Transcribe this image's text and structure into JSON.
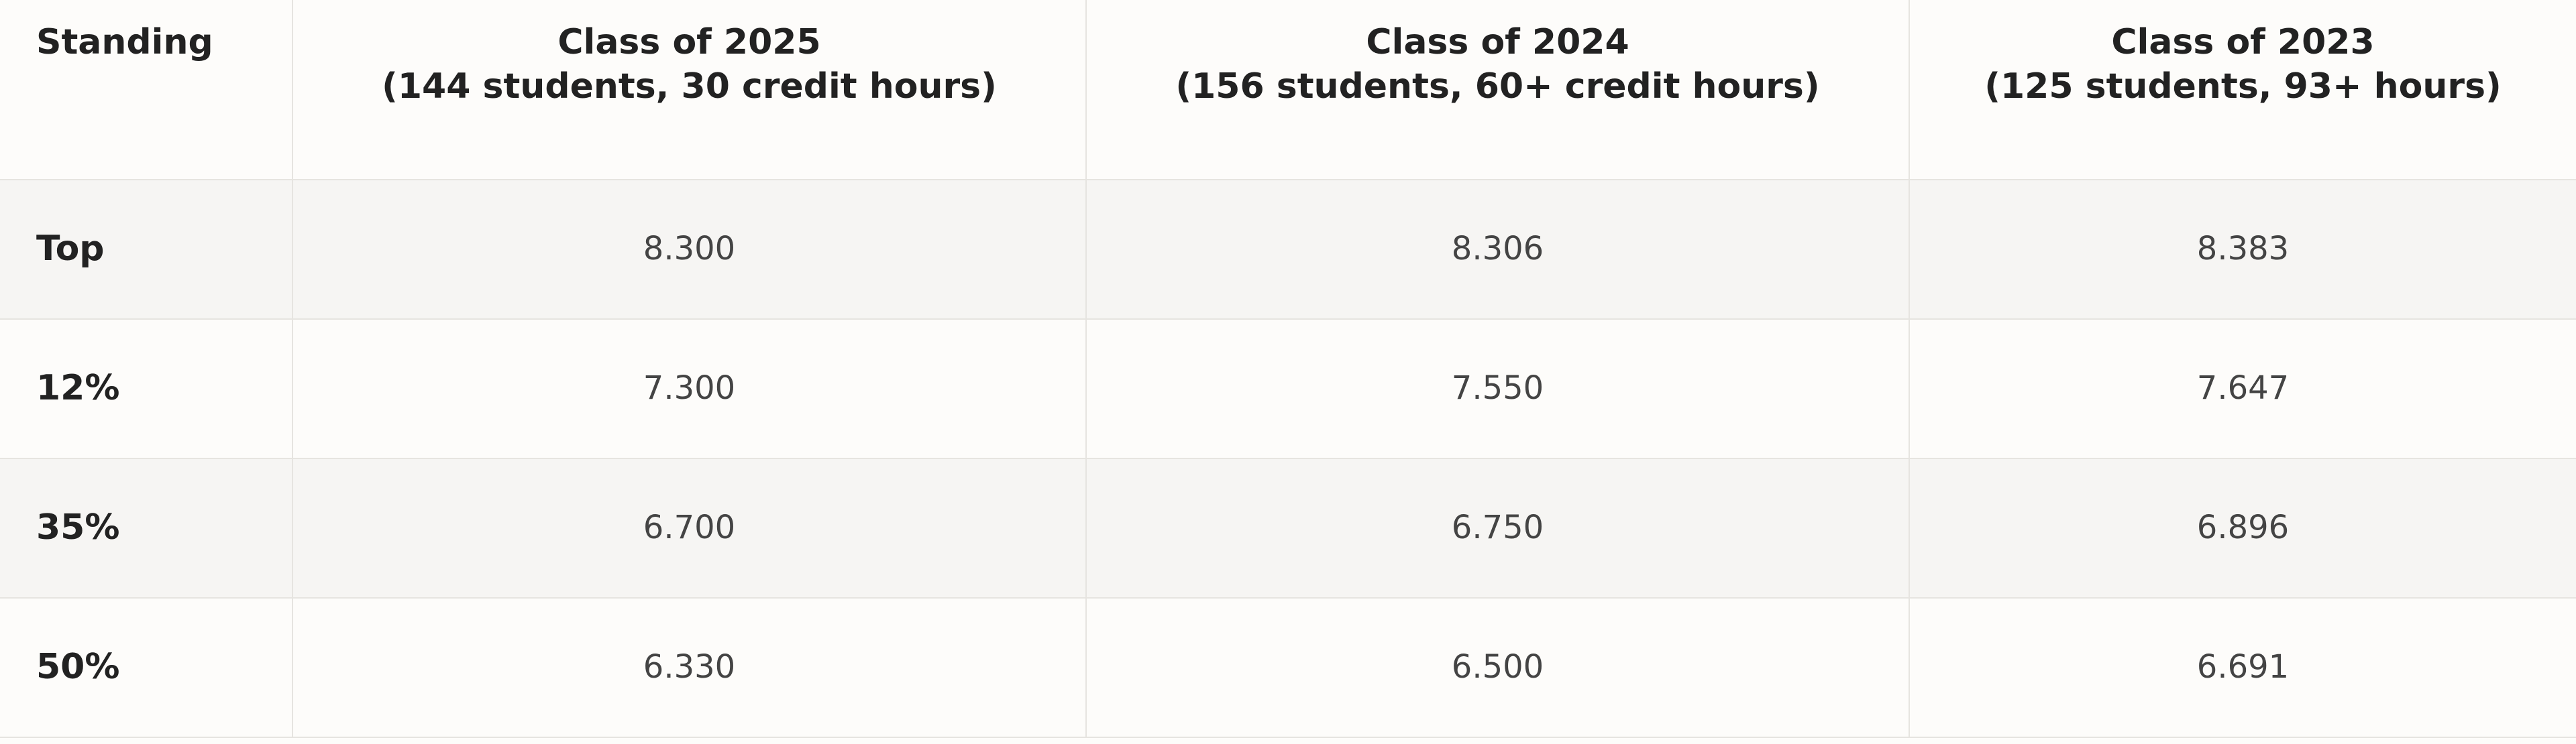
{
  "table": {
    "corner": "Standing",
    "columns": [
      {
        "title": "Class of 2025",
        "subtitle": "(144 students, 30 credit hours)"
      },
      {
        "title": "Class of 2024",
        "subtitle": "(156 students, 60+ credit hours)"
      },
      {
        "title": "Class of 2023",
        "subtitle": "(125 students, 93+ hours)"
      }
    ],
    "rows": [
      {
        "label": "Top",
        "values": [
          "8.300",
          "8.306",
          "8.383"
        ]
      },
      {
        "label": "12%",
        "values": [
          "7.300",
          "7.550",
          "7.647"
        ]
      },
      {
        "label": "35%",
        "values": [
          "6.700",
          "6.750",
          "6.896"
        ]
      },
      {
        "label": "50%",
        "values": [
          "6.330",
          "6.500",
          "6.691"
        ]
      }
    ]
  }
}
